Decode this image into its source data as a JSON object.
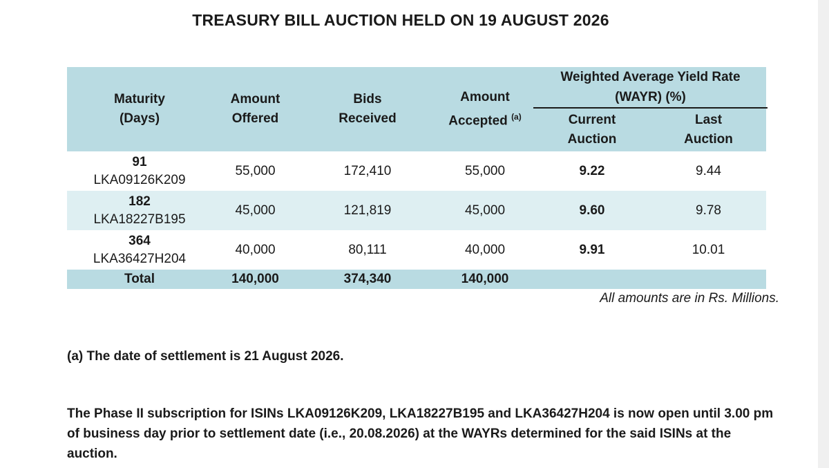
{
  "title": "TREASURY BILL AUCTION HELD ON 19 AUGUST 2026",
  "table": {
    "headers": {
      "maturity": [
        "Maturity",
        "(Days)"
      ],
      "amount_offered": [
        "Amount",
        "Offered"
      ],
      "bids_received": [
        "Bids",
        "Received"
      ],
      "amount_accepted": [
        "Amount",
        "Accepted"
      ],
      "amount_accepted_note": "(a)",
      "wayr": [
        "Weighted Average Yield Rate",
        "(WAYR) (%)"
      ],
      "current_auction": [
        "Current",
        "Auction"
      ],
      "last_auction": [
        "Last",
        "Auction"
      ]
    },
    "rows": [
      {
        "days": "91",
        "isin": "LKA09126K209",
        "offered": "55,000",
        "bids": "172,410",
        "accepted": "55,000",
        "current": "9.22",
        "last": "9.44"
      },
      {
        "days": "182",
        "isin": "LKA18227B195",
        "offered": "45,000",
        "bids": "121,819",
        "accepted": "45,000",
        "current": "9.60",
        "last": "9.78"
      },
      {
        "days": "364",
        "isin": "LKA36427H204",
        "offered": "40,000",
        "bids": "80,111",
        "accepted": "40,000",
        "current": "9.91",
        "last": "10.01"
      }
    ],
    "total": {
      "label": "Total",
      "offered": "140,000",
      "bids": "374,340",
      "accepted": "140,000"
    }
  },
  "units_note": "All amounts are in Rs. Millions.",
  "settlement_note": "(a) The date of settlement is 21 August 2026.",
  "phase_note": "The Phase II subscription for ISINs LKA09126K209, LKA18227B195 and LKA36427H204 is now open until 3.00 pm of business day prior to settlement date (i.e., 20.08.2026) at the WAYRs determined for the said ISINs at the auction."
}
